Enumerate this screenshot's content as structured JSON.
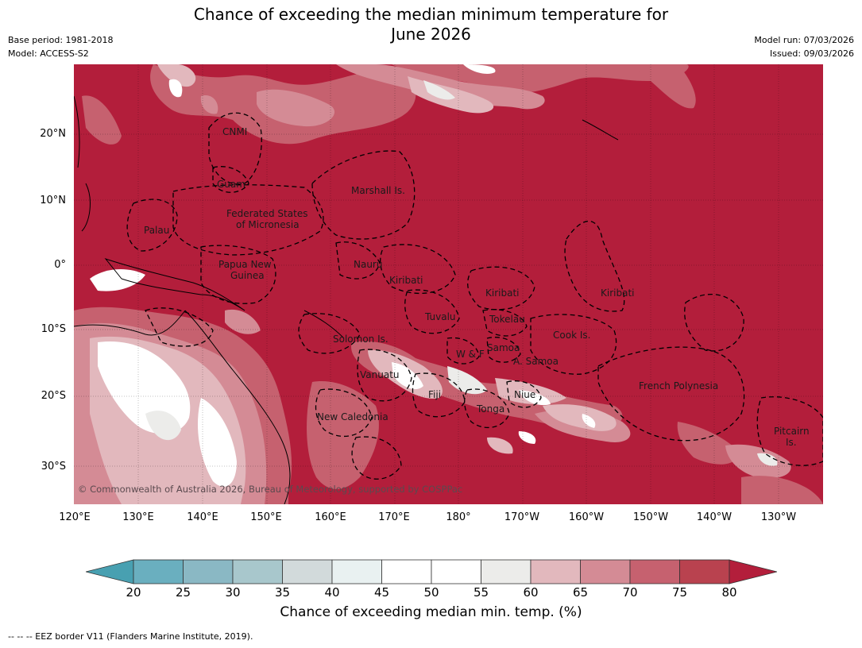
{
  "title": {
    "line1": "Chance of exceeding the median minimum temperature for",
    "line2": "June 2026"
  },
  "meta": {
    "base_period": "Base period: 1981-2018",
    "model": "Model: ACCESS-S2",
    "model_run": "Model run: 07/03/2026",
    "issued": "Issued: 09/03/2026"
  },
  "axes": {
    "lat_labels": [
      "20°N",
      "10°N",
      "0°",
      "10°S",
      "20°S",
      "30°S"
    ],
    "lon_labels": [
      "120°E",
      "130°E",
      "140°E",
      "150°E",
      "160°E",
      "170°E",
      "180°",
      "170°W",
      "160°W",
      "150°W",
      "140°W",
      "130°W"
    ]
  },
  "regions": {
    "cnmi": "CNMI",
    "guam": "Guam",
    "marshall": "Marshall Is.",
    "fsm1": "Federated States",
    "fsm2": "of Micronesia",
    "palau": "Palau",
    "png1": "Papua New",
    "png2": "Guinea",
    "nauru": "Nauru",
    "kiribati_w": "Kiribati",
    "kiribati_c": "Kiribati",
    "kiribati_e": "Kiribati",
    "tuvalu": "Tuvalu",
    "tokelau": "Tokelau",
    "cook": "Cook Is.",
    "solomon": "Solomon Is.",
    "samoa": "Samoa",
    "wf": "W & F",
    "asamoa": "A. Samoa",
    "vanuatu": "Vanuatu",
    "fiji": "Fiji",
    "niue": "Niue",
    "tonga": "Tonga",
    "fp": "French Polynesia",
    "newcal": "New Caledonia",
    "pitcairn1": "Pitcairn",
    "pitcairn2": "Is."
  },
  "copyright": "© Commonwealth of Australia 2026, Bureau of Meteorology, supported by COSPPac",
  "colorbar": {
    "ticks": [
      "20",
      "25",
      "30",
      "35",
      "40",
      "45",
      "50",
      "55",
      "60",
      "65",
      "70",
      "75",
      "80"
    ],
    "colors": [
      "#48a0b1",
      "#6aafbf",
      "#8ab8c4",
      "#a8c7cc",
      "#d2dadb",
      "#e9f1f1",
      "#ffffff",
      "#ffffff",
      "#ececea",
      "#e2b8bd",
      "#d48b95",
      "#c6616f",
      "#b9424f",
      "#b31e3b"
    ],
    "label": "Chance of exceeding median min. temp. (%)"
  },
  "footnote": "--  --  -- EEZ border V11 (Flanders Marine Institute, 2019)."
}
